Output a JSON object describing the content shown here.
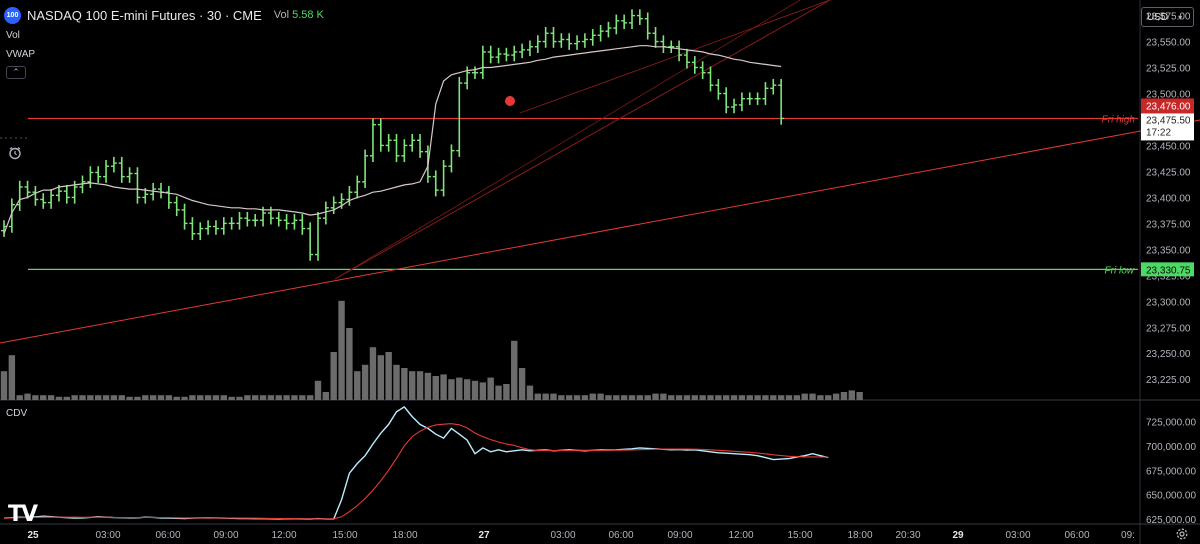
{
  "header": {
    "logo_text": "100",
    "symbol": "NASDAQ 100 E-mini Futures · 30 · CME",
    "vol_label": "Vol",
    "vol_value": "5.58 K"
  },
  "indicators": {
    "vol": "Vol",
    "vwap": "VWAP",
    "collapse_icon": "chevron-up-icon",
    "alarm_icon": "alarm-clock-icon"
  },
  "currency": "USD",
  "cdv_label": "CDV",
  "tv_logo": "TV",
  "colors": {
    "bar": "#7ee57a",
    "vwap": "#d8c8c8",
    "red_line": "#e53935",
    "fri_low": "#5dd55d",
    "volume": "#6b6b6b",
    "cdv": "#b8eeff",
    "cdv_ma": "#e53935",
    "price_tag": "#c62828",
    "low_tag": "#4cd964"
  },
  "price_axis": {
    "labels": [
      "23,575.00",
      "23,550.00",
      "23,525.00",
      "23,500.00",
      "23,450.00",
      "23,425.00",
      "23,400.00",
      "23,375.00",
      "23,350.00",
      "23,300.00",
      "23,275.00",
      "23,250.00",
      "23,225.00"
    ],
    "values": [
      23575,
      23550,
      23525,
      23500,
      23450,
      23425,
      23400,
      23375,
      23350,
      23300,
      23275,
      23250,
      23225
    ],
    "partial_label": "23,325.00",
    "current_price": "23,476.00",
    "last_price": "23,475.50",
    "countdown": "17:22",
    "fri_low_price": "23,330.75"
  },
  "cdv_axis": {
    "labels": [
      "725,000.00",
      "700,000.00",
      "675,000.00",
      "650,000.00",
      "625,000.00"
    ],
    "values": [
      725000,
      700000,
      675000,
      650000,
      625000
    ]
  },
  "time_axis": {
    "labels": [
      "25",
      "03:00",
      "06:00",
      "09:00",
      "12:00",
      "15:00",
      "18:00",
      "27",
      "03:00",
      "06:00",
      "09:00",
      "12:00",
      "15:00",
      "18:00",
      "20:30",
      "29",
      "03:00",
      "06:00",
      "09:"
    ],
    "bold": [
      true,
      false,
      false,
      false,
      false,
      false,
      false,
      true,
      false,
      false,
      false,
      false,
      false,
      false,
      false,
      true,
      false,
      false,
      false
    ]
  },
  "annotations": {
    "fri_high": "Fri high",
    "fri_low": "Fri low"
  },
  "chart_data": {
    "type": "ohlc",
    "title": "NASDAQ 100 E-mini Futures · 30 · CME",
    "price_range": [
      23205,
      23590
    ],
    "cdv_range": [
      620000,
      745000
    ],
    "levels": {
      "fri_high": 23476.0,
      "fri_low": 23330.75
    },
    "closes": [
      23372,
      23393,
      23410,
      23405,
      23398,
      23395,
      23402,
      23406,
      23400,
      23410,
      23415,
      23424,
      23420,
      23430,
      23433,
      23420,
      23423,
      23400,
      23403,
      23408,
      23405,
      23395,
      23388,
      23375,
      23365,
      23370,
      23372,
      23370,
      23375,
      23375,
      23380,
      23378,
      23378,
      23385,
      23380,
      23378,
      23375,
      23378,
      23370,
      23345,
      23380,
      23390,
      23395,
      23398,
      23405,
      23415,
      23440,
      23470,
      23450,
      23455,
      23440,
      23450,
      23455,
      23444,
      23420,
      23407,
      23430,
      23445,
      23510,
      23520,
      23520,
      23540,
      23535,
      23538,
      23537,
      23540,
      23542,
      23545,
      23550,
      23558,
      23550,
      23552,
      23548,
      23550,
      23552,
      23556,
      23560,
      23563,
      23570,
      23568,
      23575,
      23572,
      23558,
      23550,
      23545,
      23545,
      23537,
      23530,
      23525,
      23520,
      23508,
      23500,
      23487,
      23489,
      23495,
      23495,
      23495,
      23505,
      23508,
      23476
    ],
    "vwap": [
      23365,
      23385,
      23398,
      23400,
      23404,
      23407,
      23407,
      23410,
      23411,
      23412,
      23413,
      23414,
      23413,
      23412,
      23410,
      23409,
      23408,
      23408,
      23407,
      23406,
      23405,
      23404,
      23403,
      23400,
      23397,
      23395,
      23393,
      23392,
      23391,
      23390,
      23390,
      23389,
      23389,
      23388,
      23388,
      23388,
      23387,
      23386,
      23385,
      23383,
      23384,
      23386,
      23388,
      23392,
      23397,
      23400,
      23402,
      23405,
      23406,
      23408,
      23410,
      23412,
      23413,
      23415,
      23430,
      23490,
      23512,
      23518,
      23520,
      23522,
      23523,
      23525,
      23525,
      23526,
      23527,
      23528,
      23529,
      23530,
      23532,
      23533,
      23535,
      23536,
      23537,
      23538,
      23539,
      23540,
      23541,
      23542,
      23543,
      23544,
      23545,
      23546,
      23546,
      23545,
      23545,
      23544,
      23543,
      23542,
      23541,
      23540,
      23538,
      23537,
      23535,
      23533,
      23532,
      23530,
      23529,
      23528,
      23527,
      23526
    ],
    "volume": [
      18,
      28,
      3,
      4,
      3,
      3,
      3,
      2,
      2,
      3,
      3,
      3,
      3,
      3,
      3,
      3,
      2,
      2,
      3,
      3,
      3,
      3,
      2,
      2,
      3,
      3,
      3,
      3,
      3,
      2,
      2,
      3,
      3,
      3,
      3,
      3,
      3,
      3,
      3,
      3,
      3,
      3,
      4,
      4,
      5,
      5,
      6,
      5,
      4,
      5,
      8,
      12,
      13,
      12,
      12,
      10,
      11,
      10,
      10,
      9,
      9,
      10,
      11,
      10,
      9,
      9,
      9,
      8,
      8,
      6,
      5,
      4,
      4,
      4,
      3,
      3,
      3,
      3,
      3,
      3,
      3,
      3,
      3,
      3,
      3,
      3,
      3,
      3,
      3,
      3,
      3,
      3,
      3,
      3,
      3,
      3,
      4,
      4,
      5,
      5
    ],
    "volume_late": [
      12,
      5,
      30,
      62,
      45,
      18,
      22,
      33,
      28,
      30,
      22,
      20,
      18,
      18,
      17,
      15,
      16,
      13,
      14,
      13,
      12,
      11,
      14,
      9,
      10,
      37,
      20,
      9,
      4,
      4,
      4,
      3,
      3,
      3,
      3,
      4,
      4,
      3,
      3,
      3,
      3,
      3,
      3,
      4,
      4,
      3,
      3,
      3,
      3,
      3,
      3,
      3,
      3,
      3,
      3,
      3,
      3,
      3,
      3,
      3,
      3,
      3,
      4,
      4,
      3,
      3,
      4,
      5,
      6,
      5
    ],
    "cdv": [
      626000,
      626500,
      627000,
      626800,
      627200,
      628000,
      627500,
      627000,
      626500,
      626000,
      626200,
      626800,
      627500,
      627000,
      626600,
      626500,
      626200,
      626400,
      627000,
      626800,
      626300,
      626000,
      625800,
      625600,
      626000,
      626200,
      626400,
      626300,
      626000,
      625800,
      625600,
      625500,
      625400,
      625400,
      625300,
      625200,
      625400,
      625300,
      625200,
      625000,
      625500,
      625000,
      625300,
      625000,
      625100,
      625000,
      625000,
      625100,
      625000,
      625000,
      625200,
      625000,
      625300,
      625100,
      625000,
      625100,
      625200,
      625100,
      625000,
      625000,
      625100,
      625000,
      625200,
      625100,
      625000,
      625000,
      625000,
      625100,
      625000,
      625000,
      625000,
      625000
    ],
    "cdv_late": [
      625000,
      645000,
      672000,
      682000,
      690000,
      702000,
      713000,
      722000,
      735000,
      740000,
      730000,
      722000,
      718000,
      712000,
      708000,
      718000,
      712000,
      706000,
      692000,
      698000,
      694000,
      696000,
      694000,
      695000,
      696000,
      695000,
      695500,
      696000,
      695000,
      695500,
      696000,
      695500,
      695000,
      695500,
      696000,
      695800,
      696000,
      696500,
      697000,
      698000,
      697500,
      697000,
      696500,
      696000,
      696200,
      695800,
      696000,
      695000,
      694000,
      693000,
      692500,
      692000,
      691500,
      691000,
      690000,
      688000,
      686000,
      686500,
      687000,
      688500,
      690000,
      692000,
      690000,
      688000
    ]
  }
}
